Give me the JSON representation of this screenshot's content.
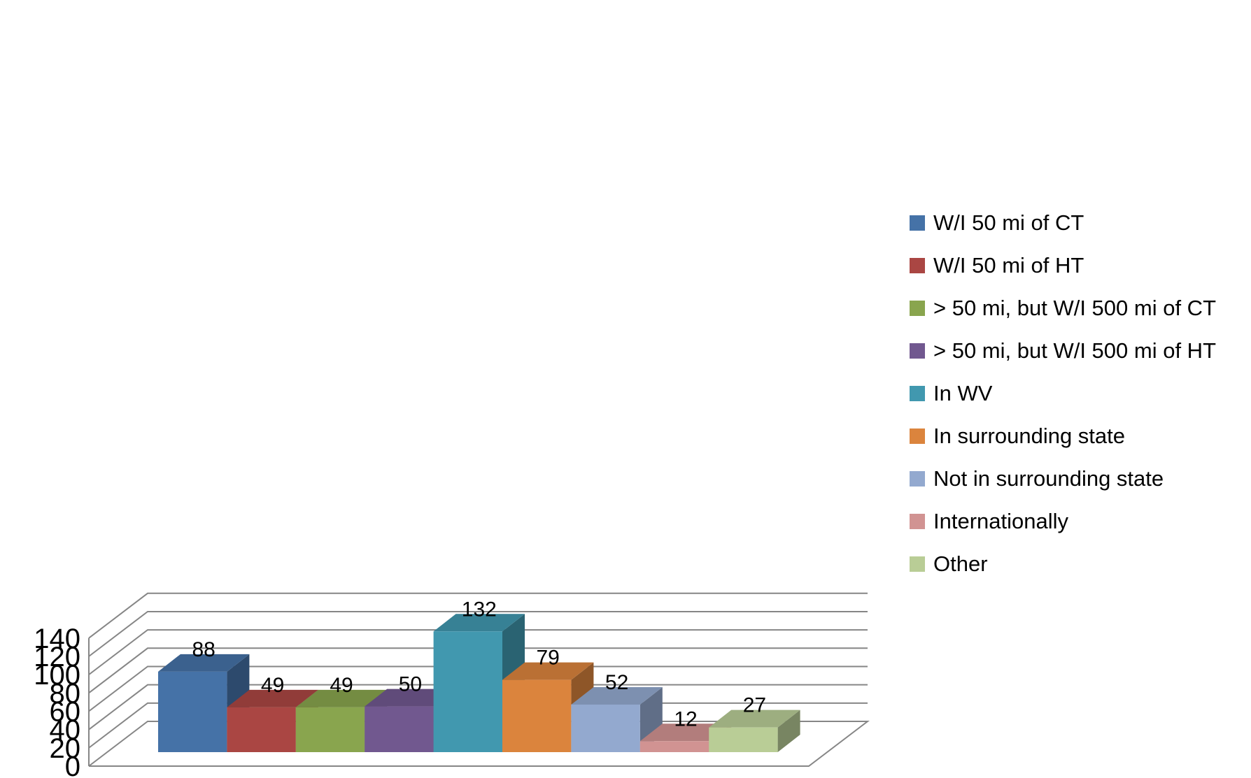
{
  "chart_data": {
    "type": "bar",
    "title": "",
    "xlabel": "",
    "ylabel": "",
    "ylim": [
      0,
      140
    ],
    "y_ticks": [
      0,
      20,
      40,
      60,
      80,
      100,
      120,
      140
    ],
    "grid": true,
    "legend_position": "right",
    "series": [
      {
        "name": "W/I 50 mi of CT",
        "value": 88,
        "color": "#4572A7"
      },
      {
        "name": "W/I 50 mi of HT",
        "value": 49,
        "color": "#AA4643"
      },
      {
        "name": "> 50 mi, but W/I 500 mi of CT",
        "value": 49,
        "color": "#89A54E"
      },
      {
        "name": "> 50 mi, but W/I 500 mi of HT",
        "value": 50,
        "color": "#71588F"
      },
      {
        "name": "In WV",
        "value": 132,
        "color": "#4198AF"
      },
      {
        "name": "In surrounding state",
        "value": 79,
        "color": "#DB843D"
      },
      {
        "name": "Not in surrounding state",
        "value": 52,
        "color": "#93A9CF"
      },
      {
        "name": "Internationally",
        "value": 12,
        "color": "#D19392"
      },
      {
        "name": "Other",
        "value": 27,
        "color": "#B9CD96"
      }
    ]
  }
}
